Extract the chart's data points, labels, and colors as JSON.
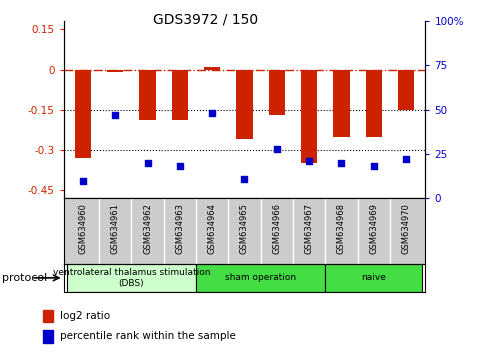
{
  "title": "GDS3972 / 150",
  "samples": [
    "GSM634960",
    "GSM634961",
    "GSM634962",
    "GSM634963",
    "GSM634964",
    "GSM634965",
    "GSM634966",
    "GSM634967",
    "GSM634968",
    "GSM634969",
    "GSM634970"
  ],
  "log2_ratio": [
    -0.33,
    -0.01,
    -0.19,
    -0.19,
    0.01,
    -0.26,
    -0.17,
    -0.35,
    -0.25,
    -0.25,
    -0.15
  ],
  "percentile_rank": [
    10,
    47,
    20,
    18,
    48,
    11,
    28,
    21,
    20,
    18,
    22
  ],
  "bar_color": "#cc2200",
  "dot_color": "#0000cc",
  "ylim_left": [
    -0.48,
    0.18
  ],
  "ylim_right": [
    0,
    100
  ],
  "yticks_left": [
    0.15,
    0.0,
    -0.15,
    -0.3,
    -0.45
  ],
  "yticks_right": [
    100,
    75,
    50,
    25,
    0
  ],
  "dotted_lines": [
    -0.15,
    -0.3
  ],
  "group_data": [
    {
      "label": "ventrolateral thalamus stimulation\n(DBS)",
      "start": 0,
      "end": 4,
      "color": "#ccffcc"
    },
    {
      "label": "sham operation",
      "start": 4,
      "end": 8,
      "color": "#44dd44"
    },
    {
      "label": "naive",
      "start": 8,
      "end": 11,
      "color": "#44dd44"
    }
  ],
  "legend_items": [
    {
      "label": "log2 ratio",
      "color": "#cc2200"
    },
    {
      "label": "percentile rank within the sample",
      "color": "#0000cc"
    }
  ],
  "protocol_label": "protocol",
  "bar_width": 0.5,
  "sample_bg": "#cccccc",
  "sample_divider": "#ffffff",
  "plot_bg": "#ffffff",
  "fig_bg": "#ffffff"
}
